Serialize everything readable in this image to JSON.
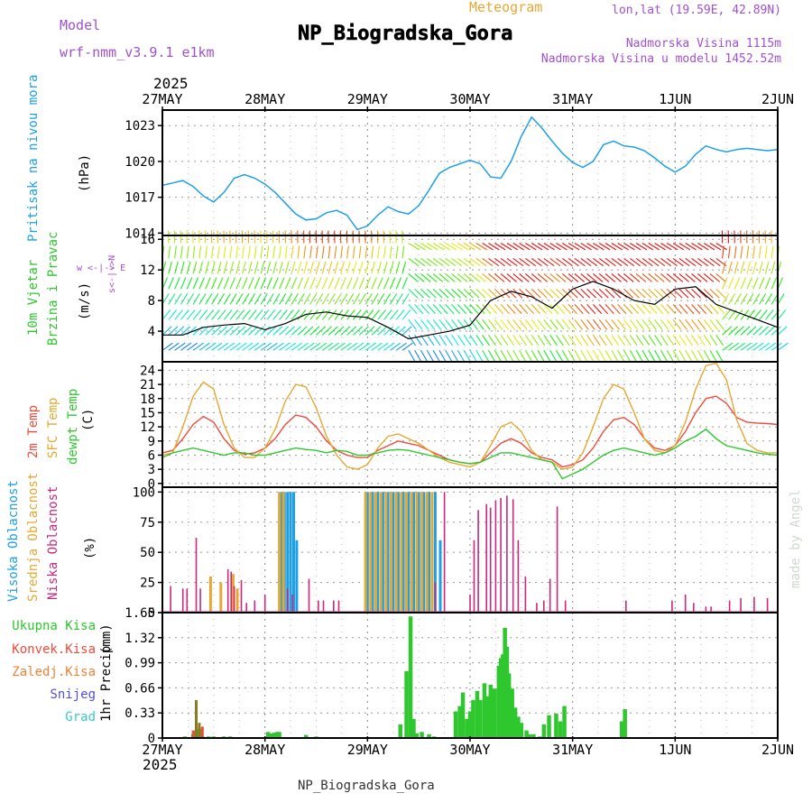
{
  "header": {
    "title": "NP_Biogradska_Gora",
    "subtitle": "Meteogram",
    "model_label": "Model",
    "model_name": "wrf-nmm_v3.9.1 e1km",
    "lonlat": "lon,lat (19.59E, 42.89N)",
    "altitude": "Nadmorska Visina 1115m",
    "model_altitude": "Nadmorska Visina u modelu 1452.52m",
    "year_top": "2025",
    "year_bottom": "2025",
    "footer": "NP_Biogradska_Gora",
    "credit": "made by Angel"
  },
  "colors": {
    "pressure": "#1ea0e6",
    "temp2m": "#f04a3c",
    "sfc_temp": "#e6a832",
    "dewpt": "#2ec82e",
    "cloud_high": "#1ea0e6",
    "cloud_mid": "#e6a832",
    "cloud_low": "#c8287e",
    "precip_total": "#2ec82e",
    "precip_conv": "#f04a3c",
    "precip_snow": "#5050dc",
    "precip_hail": "#3cc8c8",
    "precip_frz": "#f08232",
    "label_purple": "#a050d2",
    "title_gold": "#e6a832"
  },
  "x_axis": {
    "dates": [
      "27MAY",
      "28MAY",
      "29MAY",
      "30MAY",
      "31MAY",
      "1JUN",
      "2JUN"
    ]
  },
  "chart_data": [
    {
      "type": "line",
      "name": "pressure",
      "ylabel": "Pritisak na nivou mora",
      "unit": "(hPa)",
      "yticks": [
        1014,
        1017,
        1020,
        1023
      ],
      "ylim": [
        1013.8,
        1024.3
      ],
      "x_days": [
        0,
        0.1,
        0.2,
        0.3,
        0.4,
        0.5,
        0.6,
        0.7,
        0.8,
        0.9,
        1.0,
        1.1,
        1.2,
        1.3,
        1.4,
        1.5,
        1.6,
        1.7,
        1.8,
        1.9,
        2.0,
        2.1,
        2.2,
        2.3,
        2.4,
        2.5,
        2.6,
        2.7,
        2.8,
        2.9,
        3.0,
        3.1,
        3.2,
        3.3,
        3.4,
        3.5,
        3.6,
        3.7,
        3.8,
        3.9,
        4.0,
        4.1,
        4.2,
        4.3,
        4.4,
        4.5,
        4.6,
        4.7,
        4.8,
        4.9,
        5.0,
        5.1,
        5.2,
        5.3,
        5.4,
        5.5,
        5.6,
        5.7,
        5.8,
        5.9,
        6.0
      ],
      "values": [
        1018.0,
        1018.2,
        1018.4,
        1017.9,
        1017.1,
        1016.6,
        1017.4,
        1018.6,
        1018.9,
        1018.6,
        1018.1,
        1017.4,
        1016.5,
        1015.6,
        1015.1,
        1015.2,
        1015.7,
        1015.9,
        1015.5,
        1014.3,
        1014.6,
        1015.5,
        1016.2,
        1015.8,
        1015.6,
        1016.3,
        1017.6,
        1019.0,
        1019.5,
        1019.8,
        1020.1,
        1019.8,
        1018.7,
        1018.6,
        1020.0,
        1022.1,
        1023.7,
        1022.8,
        1021.7,
        1020.7,
        1019.9,
        1019.5,
        1020.0,
        1021.4,
        1021.7,
        1021.3,
        1021.2,
        1020.9,
        1020.3,
        1019.6,
        1019.1,
        1019.6,
        1020.6,
        1021.3,
        1021.0,
        1020.8,
        1021.0,
        1021.1,
        1021.0,
        1020.9,
        1021.0
      ]
    },
    {
      "type": "line",
      "name": "wind",
      "ylabel": "10m Vjetar Brzina i Pravac",
      "unit": "(m/s)",
      "compass": "w <-|-> E",
      "compass2": "s<-|->N",
      "yticks": [
        4,
        8,
        12,
        16
      ],
      "ylim": [
        0,
        16.5
      ],
      "x_days": [
        0,
        0.2,
        0.4,
        0.6,
        0.8,
        1.0,
        1.2,
        1.4,
        1.6,
        1.8,
        2.0,
        2.2,
        2.4,
        2.6,
        2.8,
        3.0,
        3.2,
        3.4,
        3.6,
        3.8,
        4.0,
        4.2,
        4.4,
        4.6,
        4.8,
        5.0,
        5.2,
        5.4,
        5.6,
        5.8,
        6.0
      ],
      "values": [
        3.5,
        3.5,
        4.5,
        4.8,
        5.0,
        4.2,
        5.0,
        6.2,
        6.5,
        6.0,
        5.8,
        4.5,
        3.0,
        3.5,
        4.0,
        4.8,
        8.0,
        9.2,
        8.5,
        7.0,
        9.5,
        10.5,
        9.5,
        8.0,
        7.5,
        9.5,
        9.8,
        7.5,
        6.5,
        5.5,
        4.5
      ]
    },
    {
      "type": "line",
      "name": "temperature",
      "ylabels": [
        "2m Temp",
        "SFC Temp",
        "dewpt Temp"
      ],
      "unit": "(C)",
      "yticks": [
        0,
        3,
        6,
        9,
        12,
        15,
        18,
        21,
        24
      ],
      "ylim": [
        -0.8,
        25.8
      ],
      "x_days": [
        0,
        0.1,
        0.2,
        0.3,
        0.4,
        0.5,
        0.6,
        0.7,
        0.8,
        0.9,
        1.0,
        1.1,
        1.2,
        1.3,
        1.4,
        1.5,
        1.6,
        1.7,
        1.8,
        1.9,
        2.0,
        2.1,
        2.2,
        2.3,
        2.4,
        2.5,
        2.6,
        2.7,
        2.8,
        2.9,
        3.0,
        3.1,
        3.2,
        3.3,
        3.4,
        3.5,
        3.6,
        3.7,
        3.8,
        3.9,
        4.0,
        4.1,
        4.2,
        4.3,
        4.4,
        4.5,
        4.6,
        4.7,
        4.8,
        4.9,
        5.0,
        5.1,
        5.2,
        5.3,
        5.4,
        5.5,
        5.6,
        5.7,
        5.8,
        5.9,
        6.0
      ],
      "series": [
        {
          "name": "2m Temp",
          "values": [
            6.5,
            7.0,
            9.5,
            12.5,
            14.2,
            13.0,
            9.5,
            7.0,
            6.2,
            6.5,
            7.5,
            9.5,
            12.5,
            14.5,
            14.0,
            12.0,
            9.0,
            7.0,
            6.0,
            5.5,
            5.5,
            7.0,
            8.0,
            9.0,
            8.5,
            8.0,
            7.0,
            6.0,
            5.0,
            4.5,
            4.2,
            4.5,
            6.5,
            8.5,
            9.5,
            8.5,
            6.5,
            5.5,
            5.0,
            3.5,
            4.0,
            5.0,
            7.5,
            11.0,
            13.5,
            14.0,
            12.5,
            9.5,
            7.5,
            7.0,
            8.0,
            11.0,
            15.0,
            18.0,
            18.5,
            17.0,
            14.0,
            13.0,
            12.8,
            12.7,
            12.5
          ]
        },
        {
          "name": "SFC Temp",
          "values": [
            6.0,
            6.5,
            12.0,
            18.5,
            21.5,
            20.0,
            12.5,
            7.5,
            5.5,
            5.5,
            7.5,
            11.5,
            17.5,
            21.0,
            20.5,
            16.0,
            10.0,
            6.0,
            3.5,
            3.0,
            4.0,
            7.5,
            10.0,
            10.5,
            9.5,
            8.5,
            7.0,
            5.5,
            4.5,
            4.0,
            3.5,
            4.5,
            8.0,
            12.0,
            13.0,
            11.0,
            7.0,
            5.0,
            4.5,
            3.0,
            3.5,
            6.5,
            12.0,
            18.0,
            21.0,
            20.0,
            15.0,
            9.5,
            7.0,
            6.5,
            8.0,
            13.0,
            20.0,
            25.0,
            25.5,
            22.0,
            13.5,
            8.5,
            7.0,
            6.5,
            6.5
          ]
        },
        {
          "name": "dewpt Temp",
          "values": [
            5.5,
            6.5,
            7.0,
            7.5,
            7.0,
            6.5,
            6.0,
            6.5,
            6.5,
            6.0,
            6.0,
            6.5,
            7.0,
            7.5,
            7.2,
            7.0,
            6.5,
            7.0,
            6.8,
            6.0,
            6.0,
            6.5,
            7.0,
            7.2,
            7.0,
            6.5,
            6.0,
            5.5,
            5.0,
            4.5,
            4.2,
            4.5,
            5.5,
            6.5,
            6.5,
            6.0,
            5.5,
            5.0,
            4.5,
            1.0,
            2.0,
            3.0,
            4.5,
            6.0,
            7.0,
            7.5,
            7.0,
            6.5,
            6.0,
            6.5,
            7.5,
            9.0,
            10.0,
            11.5,
            9.5,
            8.0,
            7.5,
            7.0,
            6.5,
            6.2,
            6.0
          ]
        }
      ]
    },
    {
      "type": "bar",
      "name": "clouds",
      "ylabels": [
        "Visoka Oblacnost",
        "Srednja Oblacnost",
        "Niska Oblacnost"
      ],
      "unit": "(%)",
      "yticks": [
        0,
        25,
        50,
        75,
        100
      ],
      "ylim": [
        0,
        104
      ],
      "series": [
        {
          "name": "Visoka Oblacnost",
          "x_days": [
            1.16,
            1.19,
            1.22,
            1.25,
            1.28,
            1.31,
            2.0,
            2.05,
            2.1,
            2.15,
            2.2,
            2.25,
            2.3,
            2.35,
            2.4,
            2.45,
            2.5,
            2.55,
            2.6,
            2.66,
            2.71
          ],
          "values": [
            100,
            100,
            100,
            100,
            100,
            60,
            100,
            100,
            100,
            100,
            100,
            100,
            100,
            100,
            100,
            100,
            100,
            100,
            100,
            100,
            60
          ]
        },
        {
          "name": "Srednja Oblacnost",
          "x_days": [
            0.47,
            0.57,
            0.69,
            0.73,
            1.14,
            1.18,
            1.98,
            2.03,
            2.08,
            2.13,
            2.18,
            2.23,
            2.28,
            2.33,
            2.38,
            2.43,
            2.48,
            2.53,
            2.58,
            2.63
          ],
          "values": [
            30,
            25,
            32,
            20,
            100,
            100,
            100,
            100,
            100,
            100,
            100,
            100,
            100,
            100,
            100,
            100,
            100,
            100,
            100,
            100
          ]
        },
        {
          "name": "Niska Oblacnost",
          "x_days": [
            0.08,
            0.2,
            0.24,
            0.33,
            0.37,
            0.64,
            0.67,
            0.7,
            0.77,
            0.82,
            0.9,
            1.0,
            1.22,
            1.27,
            1.43,
            1.52,
            1.57,
            1.67,
            1.72,
            2.66,
            2.75,
            3.0,
            3.04,
            3.08,
            3.16,
            3.2,
            3.25,
            3.3,
            3.36,
            3.42,
            3.47,
            3.54,
            3.65,
            3.72,
            3.78,
            3.85,
            3.93,
            4.52,
            4.97,
            5.1,
            5.18,
            5.3,
            5.35,
            5.53,
            5.64,
            5.77,
            5.9,
            6.0
          ],
          "values": [
            22,
            20,
            20,
            62,
            20,
            36,
            34,
            22,
            27,
            8,
            10,
            15,
            20,
            15,
            28,
            10,
            10,
            10,
            10,
            25,
            100,
            15,
            60,
            85,
            90,
            87,
            93,
            95,
            97,
            94,
            60,
            30,
            8,
            10,
            28,
            88,
            10,
            10,
            10,
            15,
            8,
            5,
            5,
            10,
            12,
            13,
            12,
            10
          ]
        }
      ]
    },
    {
      "type": "bar",
      "name": "precipitation",
      "ylabel": "1hr Precip",
      "unit": "(mm)",
      "legend": [
        "Ukupna Kisa",
        "Konvek.Kisa",
        "Zaledj.Kisa",
        "Snijeg",
        "Grad"
      ],
      "yticks": [
        0,
        0.33,
        0.66,
        0.99,
        1.32,
        1.65
      ],
      "ylim": [
        0,
        1.65
      ],
      "series": [
        {
          "name": "Ukupna Kisa",
          "x_days": [
            0.22,
            0.3,
            0.33,
            0.36,
            0.39,
            0.45,
            0.5,
            0.6,
            0.66,
            1.03,
            1.06,
            1.09,
            1.12,
            1.14,
            1.4,
            1.5,
            2.32,
            2.38,
            2.42,
            2.45,
            2.48,
            2.53,
            2.6,
            2.65,
            2.86,
            2.9,
            2.93,
            2.97,
            3.0,
            3.03,
            3.07,
            3.1,
            3.14,
            3.17,
            3.2,
            3.24,
            3.28,
            3.3,
            3.32,
            3.34,
            3.36,
            3.38,
            3.41,
            3.44,
            3.47,
            3.5,
            3.55,
            3.58,
            3.62,
            3.68,
            3.72,
            3.77,
            3.84,
            3.88,
            3.92,
            4.48,
            4.51
          ],
          "values": [
            0.02,
            0.05,
            0.1,
            0.12,
            0.02,
            0.02,
            0.02,
            0.02,
            0.02,
            0.08,
            0.06,
            0.07,
            0.08,
            0.08,
            0.04,
            0.02,
            0.18,
            0.88,
            1.6,
            0.25,
            0.06,
            0.08,
            0.05,
            0.02,
            0.35,
            0.42,
            0.6,
            0.25,
            0.35,
            0.5,
            0.62,
            0.5,
            0.72,
            0.55,
            0.7,
            0.65,
            0.95,
            1.05,
            1.1,
            1.45,
            1.2,
            0.85,
            0.65,
            0.4,
            0.28,
            0.2,
            0.1,
            0.05,
            0.05,
            0.02,
            0.18,
            0.3,
            0.32,
            0.22,
            0.42,
            0.22,
            0.38
          ]
        },
        {
          "name": "Konvek.Kisa",
          "x_days": [
            0.3,
            0.33,
            0.39
          ],
          "values": [
            0.1,
            0.3,
            0.15
          ]
        },
        {
          "name": "Zaledj.Kisa",
          "x_days": [
            0.33,
            0.36
          ],
          "values": [
            0.5,
            0.2
          ]
        }
      ]
    }
  ]
}
